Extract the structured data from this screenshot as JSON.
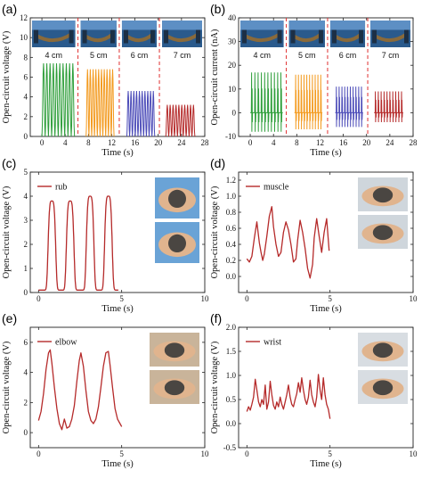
{
  "chart_data": [
    {
      "panel": "(a)",
      "type": "line",
      "xlabel": "Time (s)",
      "ylabel": "Open-circuit voltage (V)",
      "xlim": [
        -2,
        28
      ],
      "ylim": [
        0,
        12
      ],
      "xticks": [
        0,
        4,
        8,
        12,
        16,
        20,
        24,
        28
      ],
      "yticks": [
        0,
        2,
        4,
        6,
        8,
        10,
        12
      ],
      "dividers": [
        6.2,
        13.3,
        20.2
      ],
      "segments": [
        {
          "label": "4 cm",
          "color": "#2e9e3a",
          "t0": 0,
          "t1": 5.6,
          "n": 10,
          "peak": 7.4
        },
        {
          "label": "5 cm",
          "color": "#f39a1e",
          "t0": 7.6,
          "t1": 12.4,
          "n": 10,
          "peak": 6.8
        },
        {
          "label": "6 cm",
          "color": "#4b4bb8",
          "t0": 14.6,
          "t1": 19.4,
          "n": 10,
          "peak": 4.6
        },
        {
          "label": "7 cm",
          "color": "#b52a2a",
          "t0": 21.3,
          "t1": 26.3,
          "n": 10,
          "peak": 3.2
        }
      ]
    },
    {
      "panel": "(b)",
      "type": "line",
      "xlabel": "Time (s)",
      "ylabel": "Open-circuit current (nA)",
      "xlim": [
        -2,
        28
      ],
      "ylim": [
        -10,
        40
      ],
      "xticks": [
        0,
        4,
        8,
        12,
        16,
        20,
        24,
        28
      ],
      "yticks": [
        -10,
        0,
        10,
        20,
        30,
        40
      ],
      "dividers": [
        6.2,
        13.3,
        20.2
      ],
      "segments": [
        {
          "label": "4 cm",
          "color": "#2e9e3a",
          "t0": 0,
          "t1": 5.6,
          "n": 10,
          "pos": 17,
          "neg": -8
        },
        {
          "label": "5 cm",
          "color": "#f39a1e",
          "t0": 7.6,
          "t1": 12.4,
          "n": 10,
          "pos": 16,
          "neg": -7
        },
        {
          "label": "6 cm",
          "color": "#4b4bb8",
          "t0": 14.6,
          "t1": 19.4,
          "n": 10,
          "pos": 11,
          "neg": -6
        },
        {
          "label": "7 cm",
          "color": "#b52a2a",
          "t0": 21.3,
          "t1": 26.3,
          "n": 10,
          "pos": 9,
          "neg": -4
        }
      ]
    },
    {
      "panel": "(c)",
      "type": "line",
      "xlabel": "Time (s)",
      "ylabel": "Open-circuit voltage (V)",
      "legend": "rub",
      "color": "#b52a2a",
      "xlim": [
        -0.5,
        10
      ],
      "ylim": [
        0,
        5
      ],
      "xticks": [
        0,
        5,
        10
      ],
      "yticks": [
        0,
        1,
        2,
        3,
        4,
        5
      ],
      "peaks": [
        [
          0.8,
          3.8
        ],
        [
          1.9,
          3.8
        ],
        [
          3.1,
          4.0
        ],
        [
          4.2,
          4.0
        ]
      ],
      "baseline": 0.1,
      "xrange": [
        0,
        4.8
      ],
      "width": 0.25
    },
    {
      "panel": "(d)",
      "type": "line",
      "xlabel": "Time (s)",
      "ylabel": "Open-circuit voltage (V)",
      "legend": "muscle",
      "color": "#b52a2a",
      "xlim": [
        -0.5,
        10
      ],
      "ylim": [
        -0.2,
        1.3
      ],
      "xticks": [
        0,
        5,
        10
      ],
      "yticks": [
        0.0,
        0.2,
        0.4,
        0.6,
        0.8,
        1.0,
        1.2
      ],
      "x": [
        0,
        0.15,
        0.3,
        0.45,
        0.6,
        0.75,
        0.85,
        0.95,
        1.05,
        1.2,
        1.35,
        1.5,
        1.6,
        1.75,
        1.9,
        2.05,
        2.2,
        2.35,
        2.5,
        2.65,
        2.8,
        2.95,
        3.05,
        3.2,
        3.35,
        3.5,
        3.65,
        3.8,
        3.95,
        4.05,
        4.2,
        4.35,
        4.5,
        4.65,
        4.8,
        4.95
      ],
      "y": [
        0.22,
        0.18,
        0.25,
        0.48,
        0.68,
        0.42,
        0.3,
        0.2,
        0.28,
        0.5,
        0.75,
        0.87,
        0.62,
        0.4,
        0.25,
        0.3,
        0.55,
        0.68,
        0.58,
        0.4,
        0.18,
        0.22,
        0.45,
        0.7,
        0.55,
        0.35,
        0.1,
        -0.02,
        0.15,
        0.48,
        0.72,
        0.5,
        0.3,
        0.55,
        0.72,
        0.32
      ]
    },
    {
      "panel": "(e)",
      "type": "line",
      "xlabel": "Time (s)",
      "ylabel": "Open-circuit voltage (V)",
      "legend": "elbow",
      "color": "#b52a2a",
      "xlim": [
        -0.5,
        10
      ],
      "ylim": [
        -1,
        7
      ],
      "xticks": [
        0,
        5,
        10
      ],
      "yticks": [
        0,
        2,
        4,
        6
      ],
      "x": [
        0,
        0.15,
        0.3,
        0.45,
        0.6,
        0.7,
        0.8,
        0.95,
        1.1,
        1.25,
        1.4,
        1.55,
        1.7,
        1.85,
        2.0,
        2.15,
        2.3,
        2.45,
        2.55,
        2.7,
        2.85,
        3.0,
        3.15,
        3.3,
        3.45,
        3.6,
        3.75,
        3.9,
        4.05,
        4.2,
        4.3,
        4.45,
        4.6,
        4.75,
        4.9,
        5.0
      ],
      "y": [
        0.8,
        1.4,
        2.6,
        4.2,
        5.3,
        5.5,
        4.6,
        3.0,
        1.6,
        0.6,
        0.2,
        0.9,
        0.3,
        0.4,
        0.9,
        1.8,
        3.4,
        4.8,
        5.3,
        4.4,
        2.8,
        1.4,
        0.8,
        0.6,
        0.9,
        1.7,
        3.0,
        4.4,
        5.3,
        5.4,
        4.5,
        3.0,
        1.6,
        0.9,
        0.6,
        0.4
      ]
    },
    {
      "panel": "(f)",
      "type": "line",
      "xlabel": "Time (s)",
      "ylabel": "Open-circuit voltage (V)",
      "legend": "wrist",
      "color": "#b52a2a",
      "xlim": [
        -0.5,
        10
      ],
      "ylim": [
        -0.5,
        2.0
      ],
      "xticks": [
        0,
        5,
        10
      ],
      "yticks": [
        -0.5,
        0.0,
        0.5,
        1.0,
        1.5,
        2.0
      ],
      "x": [
        0,
        0.1,
        0.2,
        0.3,
        0.4,
        0.5,
        0.6,
        0.7,
        0.8,
        0.9,
        1.0,
        1.1,
        1.2,
        1.3,
        1.4,
        1.5,
        1.6,
        1.7,
        1.8,
        1.9,
        2.0,
        2.1,
        2.2,
        2.3,
        2.4,
        2.5,
        2.6,
        2.7,
        2.8,
        2.9,
        3.0,
        3.1,
        3.2,
        3.3,
        3.4,
        3.5,
        3.6,
        3.7,
        3.8,
        3.9,
        4.0,
        4.1,
        4.2,
        4.3,
        4.4,
        4.5,
        4.6,
        4.7,
        4.8,
        4.9,
        5.0
      ],
      "y": [
        0.25,
        0.35,
        0.28,
        0.4,
        0.55,
        0.92,
        0.7,
        0.45,
        0.35,
        0.5,
        0.4,
        0.8,
        0.3,
        0.45,
        0.88,
        0.6,
        0.38,
        0.3,
        0.45,
        0.35,
        0.55,
        0.4,
        0.3,
        0.45,
        0.6,
        0.8,
        0.55,
        0.4,
        0.35,
        0.5,
        0.62,
        0.85,
        0.65,
        0.95,
        0.7,
        0.5,
        0.4,
        0.55,
        0.9,
        0.6,
        0.45,
        0.35,
        0.55,
        1.02,
        0.7,
        0.5,
        0.95,
        0.6,
        0.4,
        0.3,
        0.1
      ]
    }
  ]
}
